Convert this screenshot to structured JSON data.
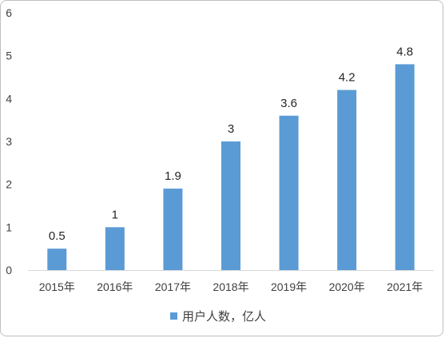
{
  "chart_data": {
    "type": "bar",
    "categories": [
      "2015年",
      "2016年",
      "2017年",
      "2018年",
      "2019年",
      "2020年",
      "2021年"
    ],
    "series": [
      {
        "name": "用户人数，亿人",
        "values": [
          0.5,
          1,
          1.9,
          3,
          3.6,
          4.2,
          4.8
        ],
        "color": "#5b9bd5"
      }
    ],
    "data_labels": [
      "0.5",
      "1",
      "1.9",
      "3",
      "3.6",
      "4.2",
      "4.8"
    ],
    "y_ticks": [
      0,
      1,
      2,
      3,
      4,
      5,
      6
    ],
    "ylim": [
      0,
      6
    ],
    "title": "",
    "xlabel": "",
    "ylabel": "",
    "grid": false,
    "legend_position": "bottom"
  }
}
